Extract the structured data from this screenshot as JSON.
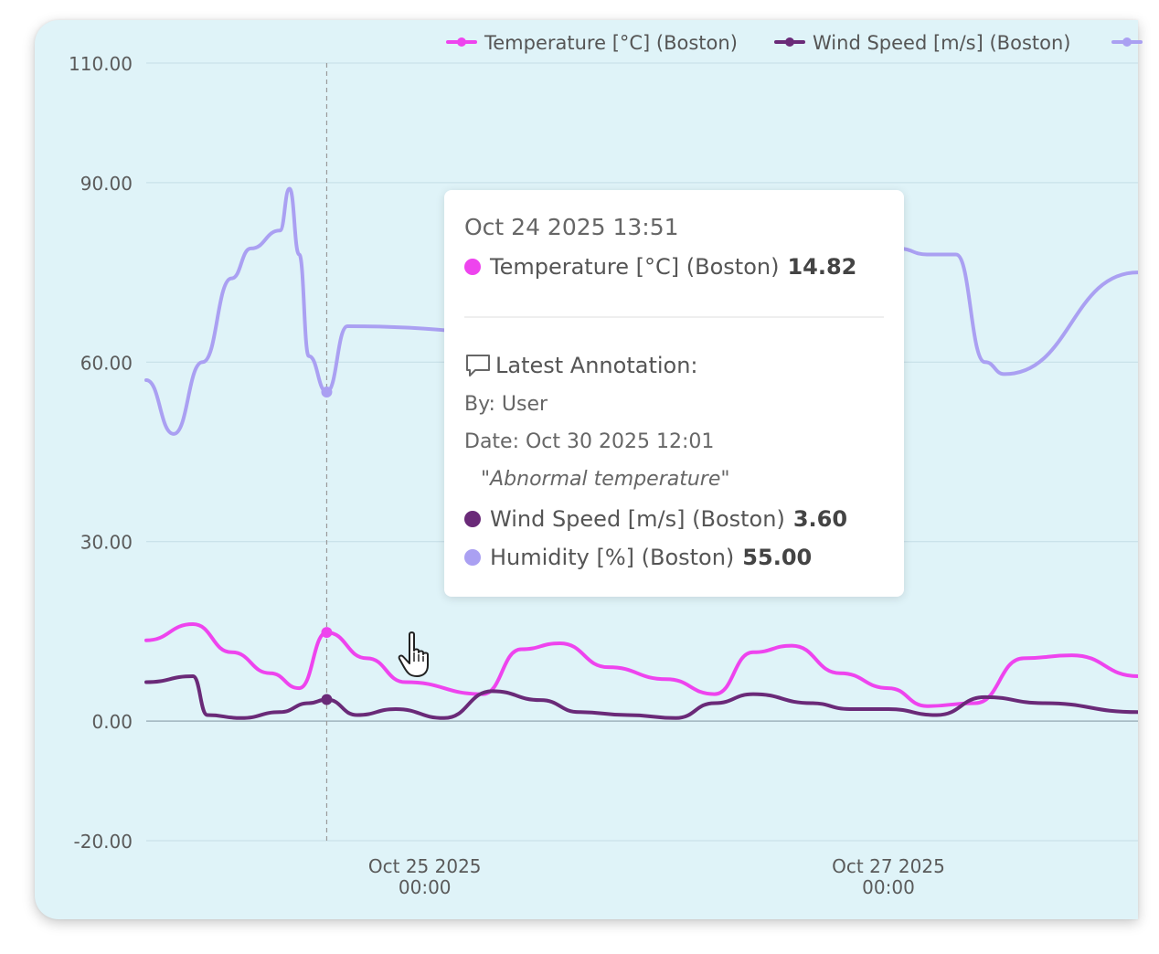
{
  "chart_data": {
    "type": "line",
    "ylim": [
      -20,
      110
    ],
    "yticks": [
      "110.00",
      "90.00",
      "60.00",
      "30.00",
      "0.00",
      "-20.00"
    ],
    "ytick_values": [
      110,
      90,
      60,
      30,
      0,
      -20
    ],
    "xticks": [
      {
        "date": "2025-10-25T00:00",
        "line1": "Oct 25 2025",
        "line2": "00:00"
      },
      {
        "date": "2025-10-27T00:00",
        "line1": "Oct 27 2025",
        "line2": "00:00"
      }
    ],
    "xlim": [
      "2025-10-23T19:10",
      "2025-10-28T01:50"
    ],
    "grid": true,
    "legend_position": "top-right",
    "series": [
      {
        "name": "Temperature [°C] (Boston)",
        "color": "#ee44ee",
        "points": [
          [
            "2025-10-23T19:10",
            13.5
          ],
          [
            "2025-10-24T00:00",
            16.2
          ],
          [
            "2025-10-24T04:00",
            11.5
          ],
          [
            "2025-10-24T08:00",
            8.0
          ],
          [
            "2025-10-24T11:00",
            5.5
          ],
          [
            "2025-10-24T13:51",
            14.82
          ],
          [
            "2025-10-24T18:00",
            10.5
          ],
          [
            "2025-10-24T22:00",
            6.5
          ],
          [
            "2025-10-25T06:00",
            4.5
          ],
          [
            "2025-10-25T10:00",
            12.0
          ],
          [
            "2025-10-25T14:00",
            13.0
          ],
          [
            "2025-10-25T19:00",
            9.0
          ],
          [
            "2025-10-26T01:00",
            7.0
          ],
          [
            "2025-10-26T06:00",
            4.5
          ],
          [
            "2025-10-26T10:00",
            11.5
          ],
          [
            "2025-10-26T14:00",
            12.6
          ],
          [
            "2025-10-26T19:00",
            8.0
          ],
          [
            "2025-10-27T00:00",
            5.5
          ],
          [
            "2025-10-27T04:00",
            2.5
          ],
          [
            "2025-10-27T09:00",
            3.0
          ],
          [
            "2025-10-27T14:00",
            10.5
          ],
          [
            "2025-10-27T19:00",
            11.0
          ],
          [
            "2025-10-28T01:50",
            7.5
          ]
        ]
      },
      {
        "name": "Wind Speed [m/s] (Boston)",
        "color": "#6a2a78",
        "points": [
          [
            "2025-10-23T19:10",
            6.5
          ],
          [
            "2025-10-24T00:00",
            7.5
          ],
          [
            "2025-10-24T01:30",
            1.0
          ],
          [
            "2025-10-24T05:00",
            0.5
          ],
          [
            "2025-10-24T09:00",
            1.5
          ],
          [
            "2025-10-24T12:00",
            3.0
          ],
          [
            "2025-10-24T13:51",
            3.6
          ],
          [
            "2025-10-24T17:00",
            1.0
          ],
          [
            "2025-10-24T21:00",
            2.0
          ],
          [
            "2025-10-25T02:00",
            0.5
          ],
          [
            "2025-10-25T07:00",
            5.0
          ],
          [
            "2025-10-25T12:00",
            3.5
          ],
          [
            "2025-10-25T16:00",
            1.5
          ],
          [
            "2025-10-25T21:00",
            1.0
          ],
          [
            "2025-10-26T02:00",
            0.5
          ],
          [
            "2025-10-26T06:00",
            3.0
          ],
          [
            "2025-10-26T10:00",
            4.5
          ],
          [
            "2025-10-26T16:00",
            3.0
          ],
          [
            "2025-10-26T20:00",
            2.0
          ],
          [
            "2025-10-27T00:00",
            2.0
          ],
          [
            "2025-10-27T05:00",
            1.0
          ],
          [
            "2025-10-27T10:00",
            4.0
          ],
          [
            "2025-10-27T16:00",
            3.0
          ],
          [
            "2025-10-28T01:50",
            1.5
          ]
        ]
      },
      {
        "name": "Humidity [%] (Boston)",
        "color": "#aaa0f2",
        "points": [
          [
            "2025-10-23T19:10",
            57
          ],
          [
            "2025-10-23T22:00",
            48
          ],
          [
            "2025-10-24T01:00",
            60
          ],
          [
            "2025-10-24T04:00",
            74
          ],
          [
            "2025-10-24T06:00",
            79
          ],
          [
            "2025-10-24T09:00",
            82
          ],
          [
            "2025-10-24T10:00",
            89
          ],
          [
            "2025-10-24T11:00",
            78
          ],
          [
            "2025-10-24T12:00",
            61
          ],
          [
            "2025-10-24T13:51",
            55
          ],
          [
            "2025-10-24T16:00",
            66
          ],
          [
            "2025-10-26T20:00",
            55
          ],
          [
            "2025-10-26T22:00",
            67
          ],
          [
            "2025-10-27T01:00",
            79
          ],
          [
            "2025-10-27T04:00",
            78
          ],
          [
            "2025-10-27T07:00",
            78
          ],
          [
            "2025-10-27T10:00",
            60
          ],
          [
            "2025-10-27T12:00",
            58
          ],
          [
            "2025-10-28T01:50",
            75
          ]
        ]
      }
    ],
    "hover": {
      "date": "2025-10-24T13:51",
      "tooltip": {
        "date_label": "Oct 24 2025 13:51",
        "temperature_label": "Temperature [°C] (Boston)",
        "temperature_value": "14.82",
        "annotation_heading": "Latest Annotation:",
        "annotation_by": "By: User",
        "annotation_date": "Date: Oct 30 2025 12:01",
        "annotation_text": "\"Abnormal temperature\"",
        "wind_label": "Wind Speed [m/s] (Boston)",
        "wind_value": "3.60",
        "humidity_label": "Humidity [%] (Boston)",
        "humidity_value": "55.00"
      }
    }
  },
  "legend": [
    {
      "label": "Temperature [°C] (Boston)",
      "color": "#ee44ee"
    },
    {
      "label": "Wind Speed [m/s] (Boston)",
      "color": "#6a2a78"
    },
    {
      "label": "",
      "color": "#aaa0f2"
    }
  ],
  "icons": {
    "annotation": "comment-icon",
    "cursor": "hand-pointer-icon"
  }
}
